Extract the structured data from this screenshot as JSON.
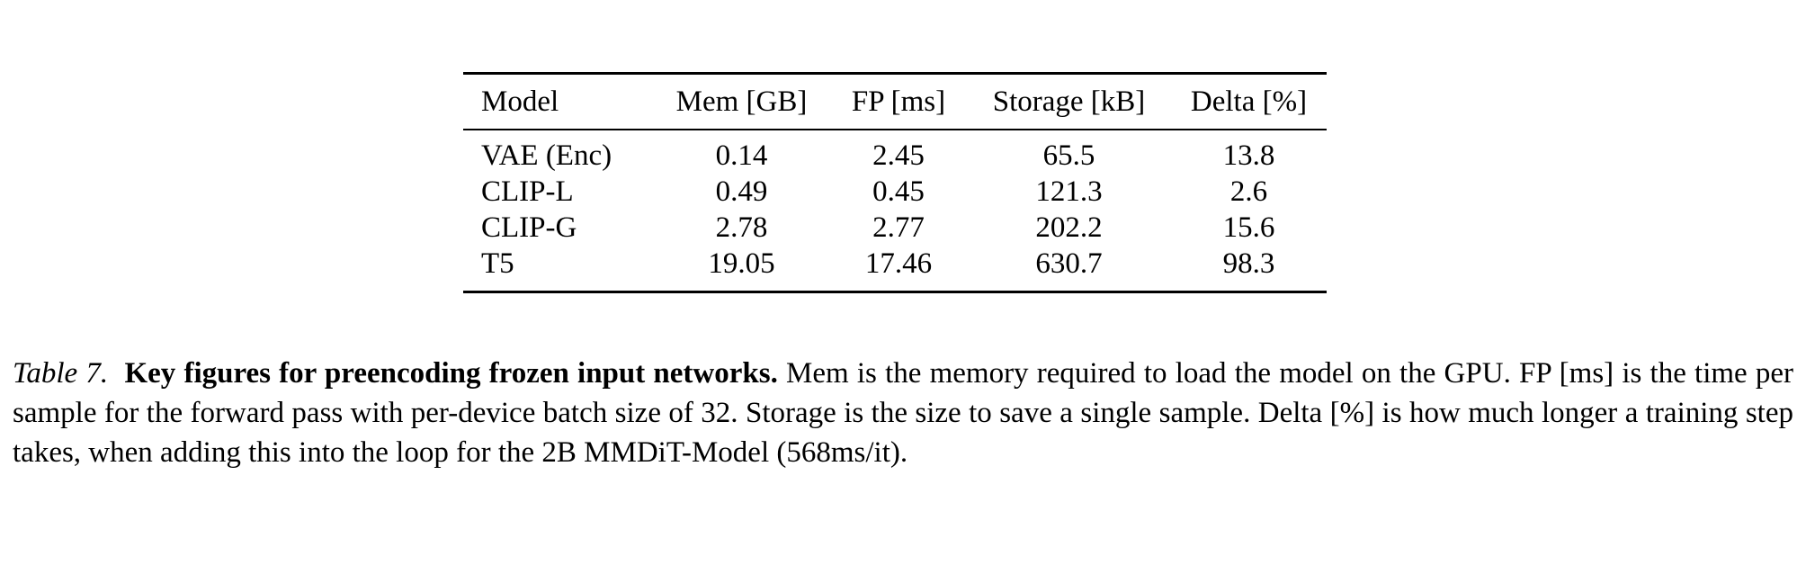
{
  "table": {
    "headers": [
      "Model",
      "Mem [GB]",
      "FP [ms]",
      "Storage [kB]",
      "Delta [%]"
    ],
    "rows": [
      [
        "VAE (Enc)",
        "0.14",
        "2.45",
        "65.5",
        "13.8"
      ],
      [
        "CLIP-L",
        "0.49",
        "0.45",
        "121.3",
        "2.6"
      ],
      [
        "CLIP-G",
        "2.78",
        "2.77",
        "202.2",
        "15.6"
      ],
      [
        "T5",
        "19.05",
        "17.46",
        "630.7",
        "98.3"
      ]
    ]
  },
  "caption": {
    "label": "Table 7.",
    "title": "Key figures for preencoding frozen input networks.",
    "body": "Mem is the memory required to load the model on the GPU. FP [ms] is the time per sample for the forward pass with per-device batch size of 32. Storage is the size to save a single sample. Delta [%] is how much longer a training step takes, when adding this into the loop for the 2B MMDiT-Model (568ms/it)."
  }
}
